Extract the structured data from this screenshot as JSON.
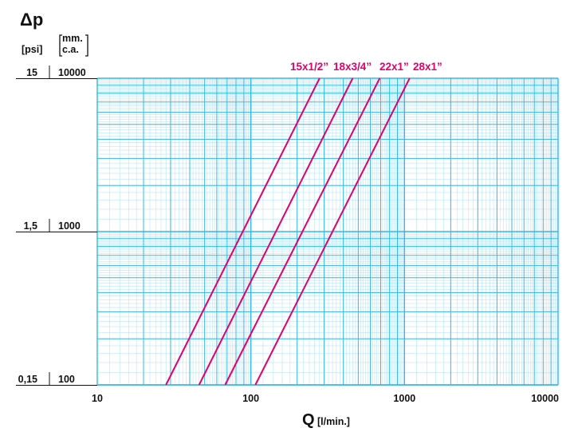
{
  "chart_data": {
    "type": "line",
    "title": "Δp",
    "xscale": "log",
    "yscale": "log",
    "xlim": [
      10,
      10000
    ],
    "ylim": [
      100,
      10000
    ],
    "grid": true,
    "xlabel": "Q",
    "xlabel_unit": "[l/min.]",
    "x_ticks": [
      "10",
      "100",
      "1000",
      "10000"
    ],
    "y_unit_psi": "[psi]",
    "y_unit_mm_line1": "mm.",
    "y_unit_mm_line2": "c.a.",
    "y_ticks": [
      {
        "psi": "15",
        "mm": "10000"
      },
      {
        "psi": "1,5",
        "mm": "1000"
      },
      {
        "psi": "0,15",
        "mm": "100"
      }
    ],
    "series": [
      {
        "name": "15x1/2”",
        "x": [
          28,
          280
        ],
        "y": [
          100,
          10000
        ]
      },
      {
        "name": "18x3/4”",
        "x": [
          46,
          460
        ],
        "y": [
          100,
          10000
        ]
      },
      {
        "name": "22x1”",
        "x": [
          68,
          690
        ],
        "y": [
          100,
          10000
        ]
      },
      {
        "name": "28x1”",
        "x": [
          107,
          1080
        ],
        "y": [
          100,
          10000
        ]
      }
    ],
    "colors": {
      "series": "#e0006e",
      "grid": "#35b8e6",
      "grid_minor": "#9fdcf4",
      "text": "#111111"
    }
  }
}
